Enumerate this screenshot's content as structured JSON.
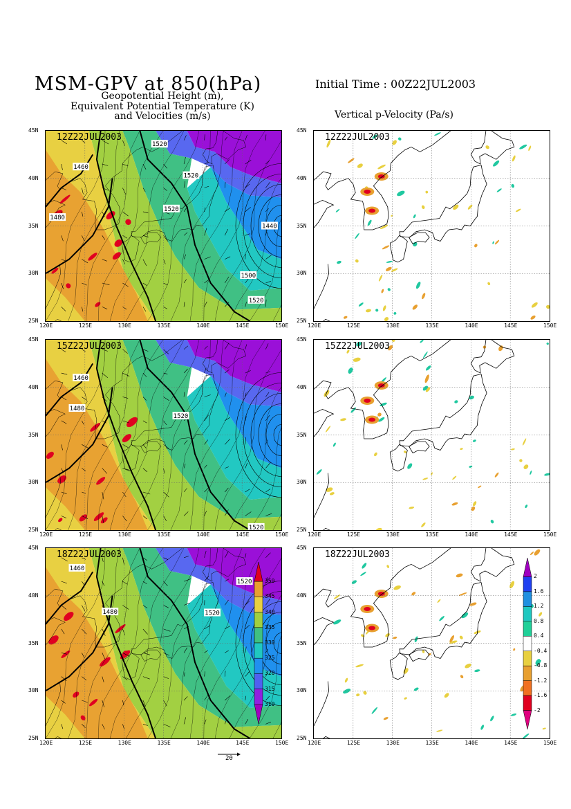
{
  "header": {
    "title": "MSM-GPV at 850(hPa)",
    "initial_time": "Initial Time : 00Z22JUL2003",
    "left_subtitle_lines": [
      "Geopotential Height (m),",
      "Equivalent Potential Temperature (K)",
      "and Velocities (m/s)"
    ],
    "right_subtitle": "Vertical p-Velocity (Pa/s)"
  },
  "axes": {
    "lon_ticks": [
      "120E",
      "125E",
      "130E",
      "135E",
      "140E",
      "145E",
      "150E"
    ],
    "lat_ticks": [
      "45N",
      "40N",
      "35N",
      "30N",
      "25N"
    ]
  },
  "rows": [
    {
      "time": "12Z22JUL2003",
      "height_labels": [
        {
          "text": "1520",
          "lon": 134.5,
          "lat": 43.6
        },
        {
          "text": "1460",
          "lon": 124.5,
          "lat": 41.2
        },
        {
          "text": "1520",
          "lon": 138.5,
          "lat": 40.3
        },
        {
          "text": "1520",
          "lon": 136.0,
          "lat": 36.8
        },
        {
          "text": "1480",
          "lon": 121.5,
          "lat": 35.9
        },
        {
          "text": "1440",
          "lon": 148.5,
          "lat": 35.0
        },
        {
          "text": "1500",
          "lon": 145.8,
          "lat": 29.8
        },
        {
          "text": "1520",
          "lon": 146.8,
          "lat": 27.2
        }
      ]
    },
    {
      "time": "15Z22JUL2003",
      "height_labels": [
        {
          "text": "1460",
          "lon": 124.5,
          "lat": 41.0
        },
        {
          "text": "1480",
          "lon": 124.0,
          "lat": 37.8
        },
        {
          "text": "1520",
          "lon": 137.2,
          "lat": 37.0
        },
        {
          "text": "1520",
          "lon": 146.8,
          "lat": 25.3
        }
      ]
    },
    {
      "time": "18Z22JUL2003",
      "height_labels": [
        {
          "text": "1460",
          "lon": 124.0,
          "lat": 42.9
        },
        {
          "text": "1520",
          "lon": 145.3,
          "lat": 41.5
        },
        {
          "text": "1480",
          "lon": 128.2,
          "lat": 38.3
        },
        {
          "text": "1520",
          "lon": 141.2,
          "lat": 38.2
        }
      ]
    }
  ],
  "theta_e_colorbar": {
    "labels": [
      "350",
      "345",
      "340",
      "335",
      "330",
      "325",
      "320",
      "315",
      "310"
    ],
    "colors": [
      "#e00020",
      "#e8a030",
      "#e8d040",
      "#a0d040",
      "#40c080",
      "#20c8c0",
      "#2090f0",
      "#5060f0",
      "#9020e0",
      "#a000c0"
    ]
  },
  "omega_colorbar": {
    "labels": [
      "2",
      "1.6",
      "1.2",
      "0.8",
      "0.4",
      "-0.4",
      "-0.8",
      "-1.2",
      "-1.6",
      "-2"
    ],
    "colors": [
      "#a000c0",
      "#2040f0",
      "#2090e0",
      "#20c8c0",
      "#20d098",
      "#ffffff",
      "#e8d040",
      "#e8a030",
      "#f07020",
      "#e00020",
      "#e00080"
    ]
  },
  "vector_reference": {
    "label": "20"
  }
}
